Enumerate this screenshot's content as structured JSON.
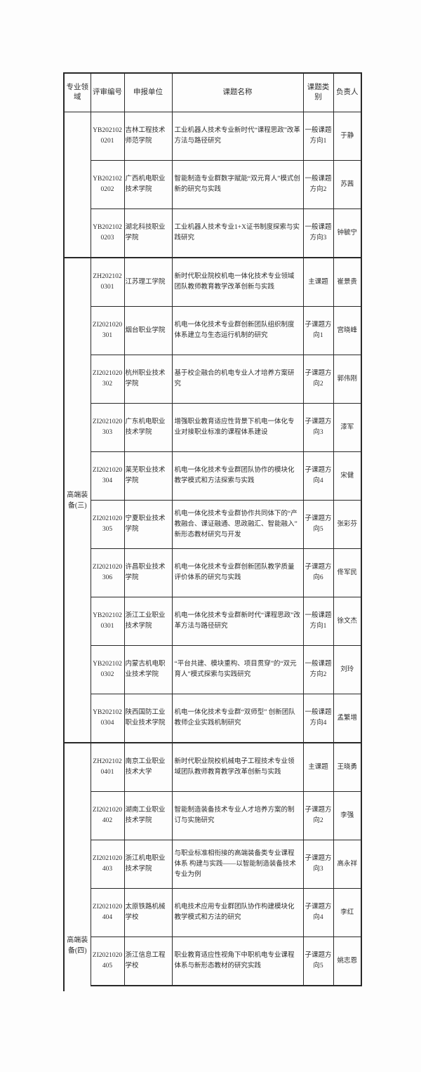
{
  "table": {
    "headers": [
      "专业领域",
      "评审编号",
      "申报单位",
      "课题名称",
      "课题类别",
      "负责人"
    ],
    "groups": [
      {
        "field": "",
        "rows": [
          {
            "no": "YB2021020201",
            "unit": "吉林工程技术师范学院",
            "title": "工业机器人技术专业新时代“课程思政”改革方法与路径研究",
            "category": "一般课题方向1",
            "leader": "于静"
          },
          {
            "no": "YB2021020202",
            "unit": "广西机电职业技术学院",
            "title": "智能制造专业群数字赋能“双元育人”模式创新的研究与实践",
            "category": "一般课题方向2",
            "leader": "苏茜"
          },
          {
            "no": "YB2021020203",
            "unit": "湖北科技职业学院",
            "title": "工业机器人技术专业1+X证书制度探索与实践研究",
            "category": "一般课题方向3",
            "leader": "钟毓宁"
          }
        ]
      },
      {
        "field": "高端装备(三)",
        "rows": [
          {
            "no": "ZH2021020301",
            "unit": "江苏理工学院",
            "title": "新时代职业院校机电一体化技术专业领域团队教师教育教学改革创新与实践",
            "category": "主课题",
            "leader": "崔景贵"
          },
          {
            "no": "ZI2021020301",
            "unit": "烟台职业学院",
            "title": "机电一体化技术专业群创新团队组织制度体系建立与生态运行机制的研究",
            "category": "子课题方向1",
            "leader": "宫晓峰"
          },
          {
            "no": "ZI2021020302",
            "unit": "杭州职业技术学院",
            "title": "基于校企融合的机电专业人才培养方案研究",
            "category": "子课题方向2",
            "leader": "郭伟刚"
          },
          {
            "no": "ZI2021020303",
            "unit": "广东机电职业技术学院",
            "title": "增强职业教育适应性背景下机电一体化专业对接职业标准的课程体系建设",
            "category": "子课题方向3",
            "leader": "漆军"
          },
          {
            "no": "ZI2021020304",
            "unit": "莱芜职业技术学院",
            "title": "机电一体化技术专业群团队协作的模块化教学模式和方法探索与实践",
            "category": "子课题方向4",
            "leader": "宋健"
          },
          {
            "no": "ZI2021020305",
            "unit": "宁夏职业技术学院",
            "title": "机电一体化技术专业群协作共同体下的“产教融合、课证融通、思政融汇、智能融入”新形态教材研究与开发",
            "category": "子课题方向5",
            "leader": "张彩芬"
          },
          {
            "no": "ZI2021020306",
            "unit": "许昌职业技术学院",
            "title": "机电一体化技术专业群创新团队教学质量评价体系的研究与实践",
            "category": "子课题方向6",
            "leader": "佟军民"
          },
          {
            "no": "YB2021020301",
            "unit": "浙江工业职业技术学院",
            "title": "机电一体化技术专业群新时代“课程思政”改革方法与路径研究",
            "category": "一般课题方向1",
            "leader": "徐文杰"
          },
          {
            "no": "YB2021020302",
            "unit": "内蒙古机电职业技术学院",
            "title": "“平台共建、模块重构、项目贯穿”的“双元育人”模式探索与实践研究",
            "category": "一般课题方向2",
            "leader": "刘玲"
          },
          {
            "no": "YB2021020304",
            "unit": "陕西国防工业职业技术学院",
            "title": "机电一体化技术专业群“双师型” 创新团队教师企业实践机制研究",
            "category": "一般课题方向4",
            "leader": "孟繁增"
          }
        ]
      },
      {
        "field": "高端装备(四)",
        "rows": [
          {
            "no": "ZH2021020401",
            "unit": "南京工业职业技术大学",
            "title": "新时代职业院校机械电子工程技术专业领域团队教师教育教学改革创新与实践",
            "category": "主课题",
            "leader": "王晓勇"
          },
          {
            "no": "ZI2021020402",
            "unit": "湖南工业职业技术学院",
            "title": "智能制造装备技术专业人才培养方案的制订与实施研究",
            "category": "子课题方向2",
            "leader": "李强"
          },
          {
            "no": "ZI2021020403",
            "unit": "浙江机电职业技术学院",
            "title": "与职业标准相衔接的高端装备类专业课程体系 构建与实践——以智能制造装备技术专业为例",
            "category": "子课题方向3",
            "leader": "高永祥"
          },
          {
            "no": "ZI2021020404",
            "unit": "太原铁路机械学校",
            "title": "机电技术应用专业群团队协作构建模块化教学模式和方法的研究",
            "category": "子课题方向4",
            "leader": "李红"
          },
          {
            "no": "ZI2021020405",
            "unit": "浙江信息工程学校",
            "title": "职业教育适应性视角下中职机电专业课程体系与新形态教材的研究实践",
            "category": "子课题方向5",
            "leader": "姚志恩"
          }
        ]
      }
    ]
  }
}
